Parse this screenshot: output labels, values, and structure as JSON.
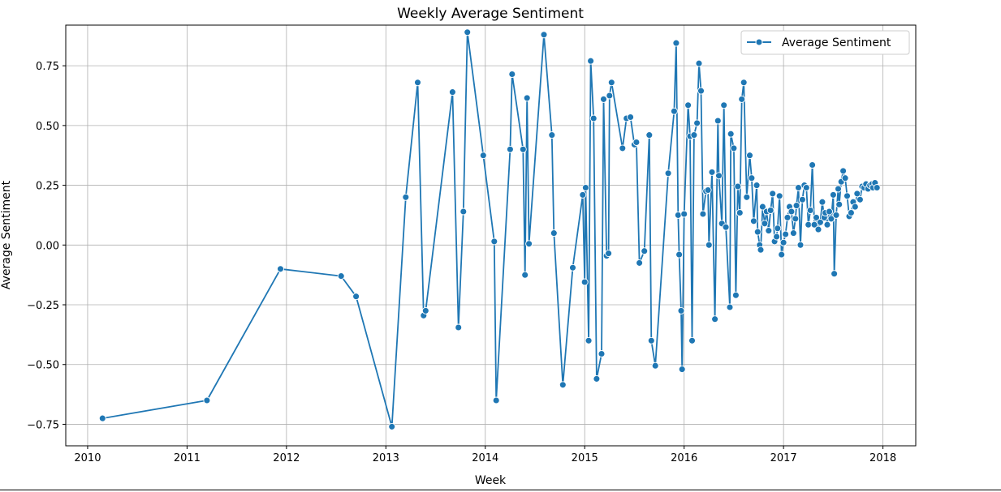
{
  "chart_data": {
    "type": "line",
    "title": "Weekly Average Sentiment",
    "xlabel": "Week",
    "ylabel": "Average Sentiment",
    "xlim": [
      2009.78,
      2018.33
    ],
    "ylim": [
      -0.84,
      0.92
    ],
    "xticks": [
      2010,
      2011,
      2012,
      2013,
      2014,
      2015,
      2016,
      2017,
      2018
    ],
    "xtick_labels": [
      "2010",
      "2011",
      "2012",
      "2013",
      "2014",
      "2015",
      "2016",
      "2017",
      "2018"
    ],
    "yticks": [
      -0.75,
      -0.5,
      -0.25,
      0.0,
      0.25,
      0.5,
      0.75
    ],
    "ytick_labels": [
      "−0.75",
      "−0.50",
      "−0.25",
      "0.00",
      "0.25",
      "0.50",
      "0.75"
    ],
    "grid": true,
    "legend_position": "top-right",
    "color": "#1f77b4",
    "series": [
      {
        "name": "Average Sentiment",
        "points": [
          [
            2010.15,
            -0.725
          ],
          [
            2011.2,
            -0.65
          ],
          [
            2011.94,
            -0.1
          ],
          [
            2012.55,
            -0.13
          ],
          [
            2012.7,
            -0.215
          ],
          [
            2013.06,
            -0.76
          ],
          [
            2013.2,
            0.2
          ],
          [
            2013.32,
            0.68
          ],
          [
            2013.38,
            -0.295
          ],
          [
            2013.4,
            -0.275
          ],
          [
            2013.67,
            0.64
          ],
          [
            2013.73,
            -0.345
          ],
          [
            2013.78,
            0.14
          ],
          [
            2013.82,
            0.89
          ],
          [
            2013.98,
            0.375
          ],
          [
            2014.09,
            0.015
          ],
          [
            2014.11,
            -0.65
          ],
          [
            2014.25,
            0.4
          ],
          [
            2014.27,
            0.715
          ],
          [
            2014.38,
            0.4
          ],
          [
            2014.4,
            -0.125
          ],
          [
            2014.42,
            0.615
          ],
          [
            2014.44,
            0.005
          ],
          [
            2014.59,
            0.88
          ],
          [
            2014.67,
            0.46
          ],
          [
            2014.69,
            0.05
          ],
          [
            2014.78,
            -0.585
          ],
          [
            2014.88,
            -0.095
          ],
          [
            2014.98,
            0.21
          ],
          [
            2015.0,
            -0.155
          ],
          [
            2015.01,
            0.24
          ],
          [
            2015.04,
            -0.4
          ],
          [
            2015.06,
            0.77
          ],
          [
            2015.09,
            0.53
          ],
          [
            2015.12,
            -0.56
          ],
          [
            2015.17,
            -0.455
          ],
          [
            2015.19,
            0.61
          ],
          [
            2015.22,
            -0.045
          ],
          [
            2015.24,
            -0.035
          ],
          [
            2015.25,
            0.625
          ],
          [
            2015.27,
            0.68
          ],
          [
            2015.38,
            0.405
          ],
          [
            2015.42,
            0.53
          ],
          [
            2015.46,
            0.535
          ],
          [
            2015.5,
            0.42
          ],
          [
            2015.52,
            0.43
          ],
          [
            2015.55,
            -0.075
          ],
          [
            2015.6,
            -0.025
          ],
          [
            2015.65,
            0.46
          ],
          [
            2015.67,
            -0.4
          ],
          [
            2015.71,
            -0.505
          ],
          [
            2015.84,
            0.3
          ],
          [
            2015.9,
            0.56
          ],
          [
            2015.92,
            0.845
          ],
          [
            2015.94,
            0.125
          ],
          [
            2015.95,
            -0.04
          ],
          [
            2015.97,
            -0.275
          ],
          [
            2015.98,
            -0.52
          ],
          [
            2016.0,
            0.13
          ],
          [
            2016.04,
            0.585
          ],
          [
            2016.06,
            0.455
          ],
          [
            2016.08,
            -0.4
          ],
          [
            2016.1,
            0.46
          ],
          [
            2016.13,
            0.51
          ],
          [
            2016.15,
            0.76
          ],
          [
            2016.17,
            0.645
          ],
          [
            2016.19,
            0.13
          ],
          [
            2016.22,
            0.225
          ],
          [
            2016.24,
            0.23
          ],
          [
            2016.25,
            0.0
          ],
          [
            2016.28,
            0.305
          ],
          [
            2016.31,
            -0.31
          ],
          [
            2016.34,
            0.52
          ],
          [
            2016.35,
            0.29
          ],
          [
            2016.38,
            0.09
          ],
          [
            2016.4,
            0.585
          ],
          [
            2016.42,
            0.075
          ],
          [
            2016.46,
            -0.26
          ],
          [
            2016.47,
            0.465
          ],
          [
            2016.5,
            0.405
          ],
          [
            2016.52,
            -0.21
          ],
          [
            2016.54,
            0.245
          ],
          [
            2016.56,
            0.135
          ],
          [
            2016.58,
            0.61
          ],
          [
            2016.6,
            0.68
          ],
          [
            2016.63,
            0.2
          ],
          [
            2016.66,
            0.375
          ],
          [
            2016.68,
            0.28
          ],
          [
            2016.7,
            0.1
          ],
          [
            2016.73,
            0.25
          ],
          [
            2016.74,
            0.055
          ],
          [
            2016.76,
            0.0
          ],
          [
            2016.77,
            -0.02
          ],
          [
            2016.79,
            0.16
          ],
          [
            2016.81,
            0.09
          ],
          [
            2016.83,
            0.14
          ],
          [
            2016.85,
            0.06
          ],
          [
            2016.87,
            0.145
          ],
          [
            2016.89,
            0.215
          ],
          [
            2016.91,
            0.015
          ],
          [
            2016.93,
            0.035
          ],
          [
            2016.94,
            0.07
          ],
          [
            2016.96,
            0.205
          ],
          [
            2016.98,
            -0.04
          ],
          [
            2017.0,
            0.01
          ],
          [
            2017.02,
            0.045
          ],
          [
            2017.04,
            0.115
          ],
          [
            2017.06,
            0.16
          ],
          [
            2017.08,
            0.14
          ],
          [
            2017.1,
            0.05
          ],
          [
            2017.12,
            0.11
          ],
          [
            2017.13,
            0.165
          ],
          [
            2017.15,
            0.24
          ],
          [
            2017.17,
            0.0
          ],
          [
            2017.19,
            0.19
          ],
          [
            2017.21,
            0.25
          ],
          [
            2017.23,
            0.24
          ],
          [
            2017.25,
            0.085
          ],
          [
            2017.27,
            0.145
          ],
          [
            2017.29,
            0.335
          ],
          [
            2017.31,
            0.085
          ],
          [
            2017.33,
            0.115
          ],
          [
            2017.35,
            0.065
          ],
          [
            2017.37,
            0.095
          ],
          [
            2017.39,
            0.18
          ],
          [
            2017.41,
            0.115
          ],
          [
            2017.42,
            0.135
          ],
          [
            2017.44,
            0.085
          ],
          [
            2017.46,
            0.14
          ],
          [
            2017.48,
            0.11
          ],
          [
            2017.5,
            0.21
          ],
          [
            2017.51,
            -0.12
          ],
          [
            2017.53,
            0.125
          ],
          [
            2017.55,
            0.235
          ],
          [
            2017.56,
            0.17
          ],
          [
            2017.58,
            0.265
          ],
          [
            2017.6,
            0.31
          ],
          [
            2017.62,
            0.28
          ],
          [
            2017.64,
            0.205
          ],
          [
            2017.66,
            0.12
          ],
          [
            2017.68,
            0.135
          ],
          [
            2017.7,
            0.18
          ],
          [
            2017.72,
            0.16
          ],
          [
            2017.74,
            0.215
          ],
          [
            2017.77,
            0.19
          ],
          [
            2017.79,
            0.245
          ],
          [
            2017.81,
            0.24
          ],
          [
            2017.83,
            0.255
          ],
          [
            2017.85,
            0.235
          ],
          [
            2017.87,
            0.25
          ],
          [
            2017.89,
            0.255
          ],
          [
            2017.9,
            0.24
          ],
          [
            2017.92,
            0.26
          ],
          [
            2017.94,
            0.24
          ]
        ]
      }
    ]
  }
}
